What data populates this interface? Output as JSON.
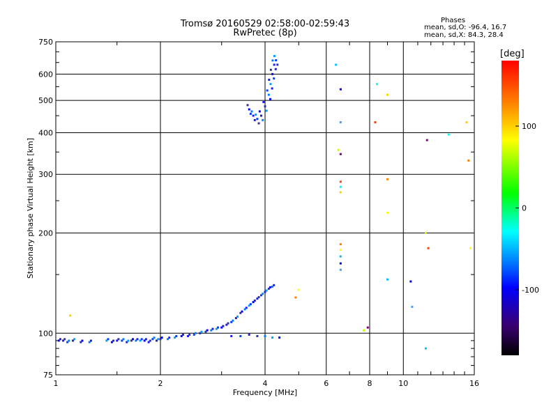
{
  "header": {
    "title_line1": "Tromsø 20160529 02:58:00-02:59:43",
    "title_line2": "RwPretec (8p)",
    "phases_heading": "Phases",
    "phases_o": "mean, sd,O: -96.4, 16.7",
    "phases_x": "mean, sd,X: 84.3, 28.4"
  },
  "colorbar": {
    "unit_label": "[deg]",
    "ticks": [
      {
        "value": 100,
        "label": "100"
      },
      {
        "value": 0,
        "label": "0"
      },
      {
        "value": -100,
        "label": "-100"
      }
    ]
  },
  "chart_data": {
    "type": "scatter",
    "title": "Tromsø 20160529 02:58:00-02:59:43",
    "subtitle": "RwPretec (8p)",
    "xlabel": "Frequency [MHz]",
    "ylabel": "Stationary phase Virtual Height [km]",
    "x_scale": "log",
    "y_scale": "log",
    "xlim": [
      1,
      16
    ],
    "ylim": [
      75,
      750
    ],
    "x_ticks": [
      1,
      2,
      4,
      6,
      8,
      10,
      16
    ],
    "y_ticks": [
      75,
      100,
      200,
      300,
      400,
      500,
      600,
      750
    ],
    "grid": true,
    "color_scale": "phase [deg], -180 to 180",
    "trace_E_region": [
      [
        1.02,
        95
      ],
      [
        1.05,
        95
      ],
      [
        1.08,
        94
      ],
      [
        1.12,
        95
      ],
      [
        1.18,
        94
      ],
      [
        1.25,
        94
      ],
      [
        1.4,
        95
      ],
      [
        1.45,
        94
      ],
      [
        1.5,
        95
      ],
      [
        1.55,
        95
      ],
      [
        1.6,
        94
      ],
      [
        1.65,
        95
      ],
      [
        1.7,
        95
      ],
      [
        1.75,
        95
      ],
      [
        1.8,
        95
      ],
      [
        1.85,
        94
      ],
      [
        1.9,
        96
      ],
      [
        1.95,
        95
      ],
      [
        2.0,
        96
      ],
      [
        2.1,
        96
      ],
      [
        2.2,
        97
      ],
      [
        2.3,
        98
      ],
      [
        2.4,
        98
      ],
      [
        2.5,
        99
      ],
      [
        2.6,
        100
      ],
      [
        2.7,
        101
      ],
      [
        2.8,
        102
      ],
      [
        2.9,
        103
      ],
      [
        3.0,
        104
      ],
      [
        3.1,
        106
      ],
      [
        3.2,
        108
      ],
      [
        3.3,
        111
      ],
      [
        3.4,
        115
      ],
      [
        3.5,
        118
      ],
      [
        3.6,
        121
      ],
      [
        3.7,
        124
      ],
      [
        3.8,
        127
      ],
      [
        3.9,
        130
      ],
      [
        4.0,
        133
      ],
      [
        4.1,
        136
      ],
      [
        4.2,
        138
      ]
    ],
    "trace_E_echo": [
      [
        3.2,
        98
      ],
      [
        3.4,
        98
      ],
      [
        3.6,
        99
      ],
      [
        3.8,
        98
      ],
      [
        4.0,
        98
      ],
      [
        4.2,
        97
      ],
      [
        4.4,
        97
      ]
    ],
    "trace_F_region": [
      [
        3.6,
        470
      ],
      [
        3.7,
        450
      ],
      [
        3.8,
        440
      ],
      [
        3.9,
        450
      ],
      [
        4.0,
        480
      ],
      [
        4.1,
        520
      ],
      [
        4.15,
        560
      ],
      [
        4.2,
        600
      ],
      [
        4.25,
        640
      ],
      [
        4.3,
        660
      ]
    ],
    "scattered_points": [
      [
        1.1,
        113
      ],
      [
        4.9,
        128
      ],
      [
        5.0,
        135
      ],
      [
        6.4,
        640
      ],
      [
        6.6,
        540
      ],
      [
        6.6,
        430
      ],
      [
        6.5,
        355
      ],
      [
        6.6,
        345
      ],
      [
        6.6,
        285
      ],
      [
        6.6,
        275
      ],
      [
        6.6,
        265
      ],
      [
        6.6,
        185
      ],
      [
        6.6,
        178
      ],
      [
        6.6,
        170
      ],
      [
        6.6,
        162
      ],
      [
        6.6,
        155
      ],
      [
        7.7,
        102
      ],
      [
        7.9,
        104
      ],
      [
        8.3,
        430
      ],
      [
        8.4,
        560
      ],
      [
        9.0,
        520
      ],
      [
        9.0,
        290
      ],
      [
        9.0,
        230
      ],
      [
        9.0,
        145
      ],
      [
        10.5,
        143
      ],
      [
        10.6,
        120
      ],
      [
        11.6,
        200
      ],
      [
        11.7,
        380
      ],
      [
        11.8,
        180
      ],
      [
        13.5,
        395
      ],
      [
        15.2,
        430
      ],
      [
        15.4,
        330
      ],
      [
        15.6,
        180
      ],
      [
        11.6,
        90
      ]
    ]
  }
}
